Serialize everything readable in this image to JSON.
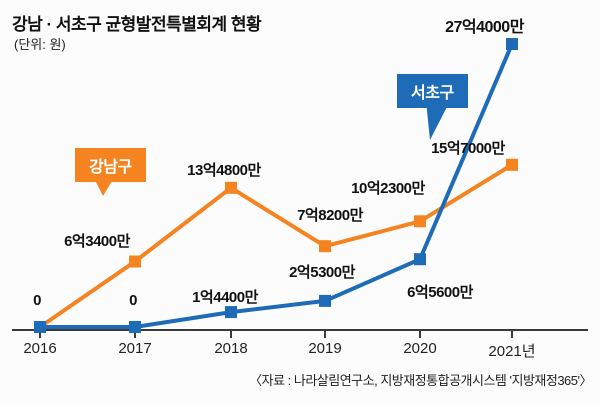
{
  "chart_data": {
    "type": "line",
    "title": "강남 · 서초구 균형발전특별회계 현황",
    "unit_label": "(단위: 원)",
    "x": [
      "2016",
      "2017",
      "2018",
      "2019",
      "2020",
      "2021년"
    ],
    "values_unit": "억원",
    "series": [
      {
        "name": "강남구",
        "color": "#f5831f",
        "values_eok": [
          0,
          6.34,
          13.48,
          7.82,
          10.23,
          15.7
        ],
        "labels": [
          "",
          "6억3400만",
          "13억4800만",
          "7억8200만",
          "10억2300만",
          "15억7000만"
        ]
      },
      {
        "name": "서초구",
        "color": "#1e6cb7",
        "values_eok": [
          0,
          0,
          1.44,
          2.53,
          6.56,
          27.4
        ],
        "labels": [
          "0",
          "0",
          "1억4400만",
          "2억5300만",
          "6억5600만",
          "27억4000만"
        ]
      }
    ],
    "ylim_eok": [
      0,
      28
    ],
    "legend_position": "callout-badges",
    "grid": false,
    "source": "〈자료 : 나라살림연구소, 지방재정통합공개시스템 '지방재정365'〉"
  }
}
